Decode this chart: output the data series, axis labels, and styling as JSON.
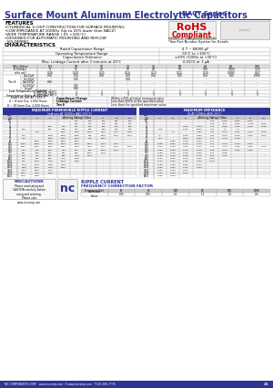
{
  "title": "Surface Mount Aluminum Electrolytic Capacitors",
  "series": "NACY Series",
  "dark_blue": "#2d3494",
  "features": [
    "CYLINDRICAL V-CHIP CONSTRUCTION FOR SURFACE MOUNTING",
    "LOW IMPEDANCE AT 100KHz (Up to 20% lower than NACZ)",
    "WIDE TEMPERATURE RANGE (-55 +105°C)",
    "DESIGNED FOR AUTOMATIC MOUNTING AND REFLOW",
    "  SOLDERING"
  ],
  "char_rows": [
    [
      "Rated Capacitance Range",
      "4.7 ~ 68000 μF"
    ],
    [
      "Operating Temperature Range",
      "-55°C to +105°C"
    ],
    [
      "Capacitance Tolerance",
      "±20% (120Hz at +20°C)"
    ],
    [
      "Max. Leakage Current after 2 minutes at 20°C",
      "0.01CV or 3 μA"
    ]
  ],
  "wv_headers": [
    "WV (Volts)",
    "6.3",
    "10",
    "16",
    "25",
    "35",
    "50",
    "63",
    "80",
    "100"
  ],
  "b_v_row": [
    "B V(Vrdc)",
    "8",
    "11",
    "20",
    "52",
    "44",
    "50",
    "160",
    "1000",
    "1.25"
  ],
  "alpha_row": [
    "α(to αd.)",
    "0.26",
    "0.20",
    "0.15",
    "0.14",
    "0.13",
    "0.12",
    "0.10",
    "0.085",
    "0.07"
  ],
  "tan_rows": [
    [
      "C≤100μF",
      "0.08",
      "0.04",
      "0.08",
      "0.10",
      "0.14",
      "0.10",
      "0.14",
      "0.10",
      "0.068"
    ],
    [
      "C>100μF",
      "-",
      "0.06",
      "-",
      "0.18",
      "-",
      "-",
      "-",
      "-",
      "-"
    ],
    [
      "C≤1000μF",
      "0.90",
      "-",
      "-",
      "-",
      "-",
      "-",
      "-",
      "-",
      "-"
    ],
    [
      "C>1000μF",
      "-",
      "0.05",
      "-",
      "-",
      "-",
      "-",
      "-",
      "-",
      "-"
    ],
    [
      "C>∞μF",
      "-",
      "0.90",
      "-",
      "-",
      "-",
      "-",
      "-",
      "-",
      "-"
    ]
  ],
  "low_temp_rows": [
    [
      "Z -40°C/Z +20°C",
      "3",
      "2",
      "2",
      "2",
      "2",
      "2",
      "2",
      "2",
      "2"
    ],
    [
      "Z -55°C/Z +20°C",
      "5",
      "4",
      "3",
      "3",
      "3",
      "3",
      "3",
      "3",
      "3"
    ]
  ],
  "ripple_rows": [
    [
      "4.7",
      "-",
      "-",
      "-",
      "-",
      "260",
      "300",
      "265",
      "285",
      "290"
    ],
    [
      "10",
      "-",
      "-",
      "-",
      "-",
      "350",
      "320",
      "330",
      "355",
      "380"
    ],
    [
      "22",
      "-",
      "-",
      "250",
      "330",
      "430",
      "460",
      "530",
      "540",
      "600"
    ],
    [
      "27",
      "160",
      "-",
      "280",
      "350",
      "420",
      "460",
      "530",
      "560",
      "630"
    ],
    [
      "33",
      "-",
      "170",
      "-",
      "2050",
      "2050",
      "2050",
      "2080",
      "1495",
      "2050"
    ],
    [
      "47",
      "170",
      "-",
      "2050",
      "2050",
      "2050",
      "345",
      "2080",
      "1545",
      "5000"
    ],
    [
      "56",
      "170",
      "-",
      "2050",
      "2050",
      "2050",
      "370",
      "2080",
      "-",
      "-"
    ],
    [
      "68",
      "-",
      "2050",
      "2050",
      "2050",
      "3000",
      "-",
      "-",
      "-",
      "-"
    ],
    [
      "100",
      "2050",
      "2050",
      "2050",
      "3000",
      "4000",
      "4000",
      "5000",
      "5000",
      "-"
    ],
    [
      "150",
      "2050",
      "2050",
      "3000",
      "4000",
      "4000",
      "4000",
      "5000",
      "5000",
      "5000"
    ],
    [
      "220",
      "430",
      "470",
      "530",
      "640",
      "750",
      "860",
      "1030",
      "1100",
      "-"
    ],
    [
      "330",
      "530",
      "600",
      "680",
      "800",
      "950",
      "1060",
      "1270",
      "-",
      "-"
    ],
    [
      "470",
      "630",
      "710",
      "800",
      "950",
      "1120",
      "1270",
      "-",
      "-",
      "-"
    ],
    [
      "680",
      "760",
      "860",
      "960",
      "1140",
      "1350",
      "-",
      "-",
      "-",
      "-"
    ],
    [
      "1000",
      "930",
      "1050",
      "1180",
      "1400",
      "1650",
      "-",
      "-",
      "-",
      "-"
    ],
    [
      "1500",
      "1140",
      "1290",
      "1450",
      "1720",
      "-",
      "-",
      "-",
      "-",
      "-"
    ],
    [
      "2200",
      "1380",
      "1560",
      "1750",
      "2080",
      "-",
      "-",
      "-",
      "-",
      "-"
    ],
    [
      "3300",
      "1690",
      "1910",
      "2140",
      "-",
      "-",
      "-",
      "-",
      "-",
      "-"
    ],
    [
      "4700",
      "2020",
      "2280",
      "2560",
      "-",
      "-",
      "-",
      "-",
      "-",
      "-"
    ],
    [
      "6800",
      "2430",
      "2750",
      "-",
      "-",
      "-",
      "-",
      "-",
      "-",
      "-"
    ]
  ],
  "impedance_rows": [
    [
      "4.7",
      "-",
      "-",
      "-",
      "-",
      "1.40",
      "2.000",
      "2.800",
      "3.600",
      "-"
    ],
    [
      "10",
      "-",
      "-",
      "-",
      "-",
      "1.45",
      "10.7",
      "0.950",
      "1.000",
      "0.900"
    ],
    [
      "22",
      "-",
      "-",
      "0.900",
      "0.700",
      "0.41",
      "0.350",
      "0.260",
      "0.300",
      "0.250"
    ],
    [
      "27",
      "1.45",
      "-",
      "0.700",
      "0.600",
      "0.37",
      "0.7",
      "0.7",
      "-",
      "-"
    ],
    [
      "33",
      "-",
      "0.7",
      "-",
      "0.450",
      "0.30",
      "0.270",
      "0.200",
      "0.220",
      "0.200"
    ],
    [
      "47",
      "0.7",
      "-",
      "0.900",
      "0.350",
      "0.25",
      "0.210",
      "0.160",
      "0.180",
      "0.044"
    ],
    [
      "56",
      "0.57",
      "-",
      "0.650",
      "0.300",
      "0.17",
      "0.140",
      "0.100",
      "-",
      "-"
    ],
    [
      "68",
      "-",
      "0.380",
      "0.300",
      "0.230",
      "0.17",
      "-",
      "-",
      "-",
      "-"
    ],
    [
      "100",
      "0.380",
      "0.300",
      "0.230",
      "0.170",
      "0.12",
      "0.100",
      "0.075",
      "0.065",
      "-"
    ],
    [
      "150",
      "0.300",
      "0.230",
      "0.180",
      "0.130",
      "0.09",
      "0.075",
      "0.060",
      "0.065",
      "0.014"
    ],
    [
      "220",
      "0.230",
      "0.180",
      "0.145",
      "0.120",
      "0.09",
      "0.075",
      "0.060",
      "0.065",
      "-"
    ],
    [
      "330",
      "0.180",
      "0.145",
      "0.115",
      "0.095",
      "0.07",
      "0.055",
      "-",
      "-",
      "-"
    ],
    [
      "470",
      "0.150",
      "0.120",
      "0.095",
      "0.075",
      "0.06",
      "0.045",
      "-",
      "-",
      "-"
    ],
    [
      "680",
      "0.120",
      "0.095",
      "0.075",
      "0.060",
      "0.045",
      "-",
      "-",
      "-",
      "-"
    ],
    [
      "1000",
      "0.100",
      "0.080",
      "0.065",
      "0.050",
      "0.040",
      "-",
      "-",
      "-",
      "-"
    ],
    [
      "1500",
      "0.080",
      "0.065",
      "0.052",
      "0.040",
      "-",
      "-",
      "-",
      "-",
      "-"
    ],
    [
      "2200",
      "0.065",
      "0.052",
      "0.040",
      "0.030",
      "-",
      "-",
      "-",
      "-",
      "-"
    ],
    [
      "3300",
      "0.052",
      "0.042",
      "0.032",
      "-",
      "-",
      "-",
      "-",
      "-",
      "-"
    ],
    [
      "4700",
      "0.042",
      "0.035",
      "0.027",
      "-",
      "-",
      "-",
      "-",
      "-",
      "-"
    ],
    [
      "6800",
      "0.035",
      "0.028",
      "-",
      "-",
      "-",
      "-",
      "-",
      "-",
      "-"
    ]
  ],
  "freq_table_headers": [
    "Frequency (Hz)",
    "50",
    "60",
    "120",
    "1K",
    "10K",
    "100K"
  ],
  "freq_table_values": [
    "Correction\nFactor",
    "0.75",
    "0.75",
    "1.0",
    "1.3",
    "1.5",
    "1.8"
  ],
  "footer": "NIC COMPONENTS CORP.   www.niccomp.com   E www.niccomp.com   T 631-396-7778",
  "footer_page": "21"
}
